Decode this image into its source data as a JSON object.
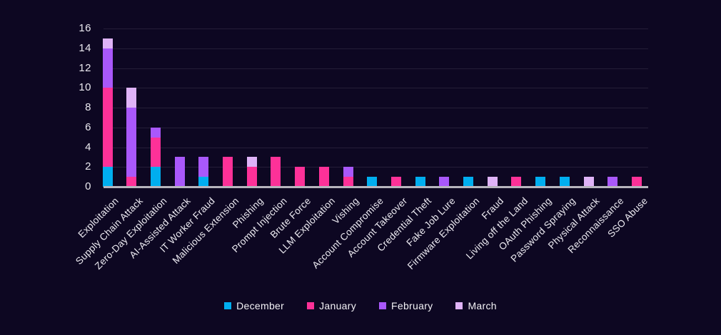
{
  "colors": {
    "background": "#0d0722",
    "gridline": "#251e38",
    "axis_line": "#b7b5bd",
    "text": "#edebf2"
  },
  "chart_data": {
    "type": "bar",
    "stacked": true,
    "title": "",
    "xlabel": "",
    "ylabel": "",
    "ylim": [
      0,
      16
    ],
    "ytick_step": 2,
    "grid": true,
    "legend_position": "bottom",
    "categories": [
      "Exploitation",
      "Supply Chain Attack",
      "Zero-Day Exploitation",
      "AI-Assisted Attack",
      "IT Worker Fraud",
      "Malicious Extension",
      "Phishing",
      "Prompt Injection",
      "Brute Force",
      "LLM Exploitation",
      "Vishing",
      "Account Compromise",
      "Account Takeover",
      "Credential Theft",
      "Fake Job Lure",
      "Firmware Exploitation",
      "Fraud",
      "Living off the Land",
      "OAuth Phishing",
      "Password Spraying",
      "Physical Attack",
      "Reconnaissance",
      "SSO Abuse"
    ],
    "series": [
      {
        "name": "December",
        "color": "#00aeef",
        "values": [
          2,
          0,
          2,
          0,
          1,
          0,
          0,
          0,
          0,
          0,
          0,
          1,
          0,
          1,
          0,
          1,
          0,
          0,
          1,
          1,
          0,
          0,
          0
        ]
      },
      {
        "name": "January",
        "color": "#fd3198",
        "values": [
          8,
          1,
          3,
          0,
          0,
          3,
          2,
          3,
          2,
          2,
          1,
          0,
          1,
          0,
          0,
          0,
          0,
          1,
          0,
          0,
          0,
          0,
          1
        ]
      },
      {
        "name": "February",
        "color": "#a958fb",
        "values": [
          4,
          7,
          1,
          3,
          2,
          0,
          0,
          0,
          0,
          0,
          1,
          0,
          0,
          0,
          1,
          0,
          0,
          0,
          0,
          0,
          0,
          1,
          0
        ]
      },
      {
        "name": "March",
        "color": "#dfb3f7",
        "values": [
          1,
          2,
          0,
          0,
          0,
          0,
          1,
          0,
          0,
          0,
          0,
          0,
          0,
          0,
          0,
          0,
          1,
          0,
          0,
          0,
          1,
          0,
          0
        ]
      }
    ]
  }
}
